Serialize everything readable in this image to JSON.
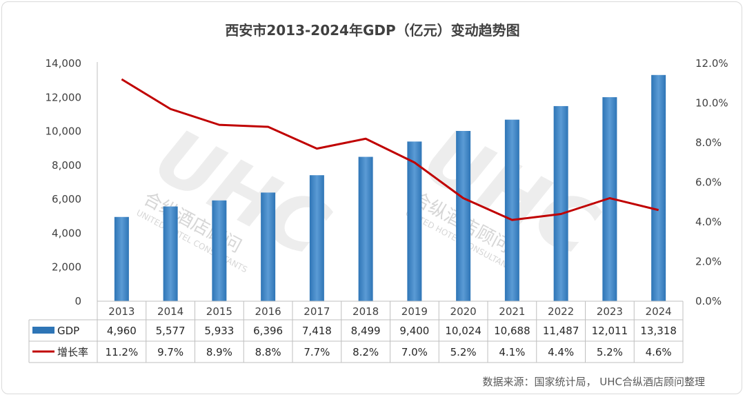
{
  "title": "西安市2013-2024年GDP（亿元）变动趋势图",
  "source": "数据来源：国家统计局， UHC合纵酒店顾问整理",
  "watermark": {
    "logo_text": "UHC",
    "cn": "合纵酒店顾问",
    "en": "UNITED HOTEL CONSULTANTS"
  },
  "colors": {
    "bar": "#2e75b6",
    "bar_light": "#5b9bd5",
    "line": "#c00000"
  },
  "chart_data": {
    "type": "bar",
    "categories": [
      "2013",
      "2014",
      "2015",
      "2016",
      "2017",
      "2018",
      "2019",
      "2020",
      "2021",
      "2022",
      "2023",
      "2024"
    ],
    "series": [
      {
        "name": "GDP",
        "type": "bar",
        "axis": "left",
        "values": [
          4960,
          5577,
          5933,
          6396,
          7418,
          8499,
          9400,
          10024,
          10688,
          11487,
          12011,
          13318
        ],
        "labels": [
          "4,960",
          "5,577",
          "5,933",
          "6,396",
          "7,418",
          "8,499",
          "9,400",
          "10,024",
          "10,688",
          "11,487",
          "12,011",
          "13,318"
        ]
      },
      {
        "name": "增长率",
        "type": "line",
        "axis": "right",
        "values": [
          11.2,
          9.7,
          8.9,
          8.8,
          7.7,
          8.2,
          7.0,
          5.2,
          4.1,
          4.4,
          5.2,
          4.6
        ],
        "labels": [
          "11.2%",
          "9.7%",
          "8.9%",
          "8.8%",
          "7.7%",
          "8.2%",
          "7.0%",
          "5.2%",
          "4.1%",
          "4.4%",
          "5.2%",
          "4.6%"
        ]
      }
    ],
    "ylim": [
      0,
      14000
    ],
    "yticks": [
      "0",
      "2,000",
      "4,000",
      "6,000",
      "8,000",
      "10,000",
      "12,000",
      "14,000"
    ],
    "y2lim": [
      0,
      12
    ],
    "y2ticks": [
      "0.0%",
      "2.0%",
      "4.0%",
      "6.0%",
      "8.0%",
      "10.0%",
      "12.0%"
    ],
    "data_table": true,
    "grid": false
  }
}
